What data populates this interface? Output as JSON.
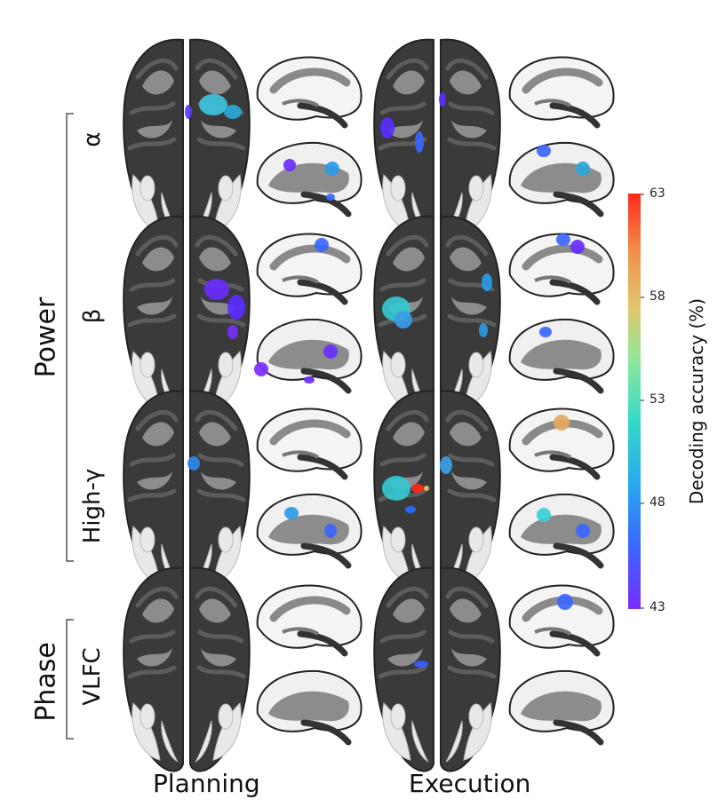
{
  "labels": {
    "group_power": "Power",
    "group_phase": "Phase",
    "band_alpha": "α",
    "band_beta": "β",
    "band_highgamma": "High-γ",
    "band_vlfc": "VLFC",
    "col_planning": "Planning",
    "col_execution": "Execution"
  },
  "colorbar": {
    "title": "Decoding accuracy (%)",
    "ticks": [
      "63",
      "58",
      "53",
      "48",
      "43"
    ],
    "min": 43,
    "max": 63,
    "colors": [
      "#7b2cff",
      "#3a66ff",
      "#29a8f0",
      "#35d8c8",
      "#8fe89a",
      "#e0c870",
      "#f0904a",
      "#ff2a1a"
    ]
  }
}
